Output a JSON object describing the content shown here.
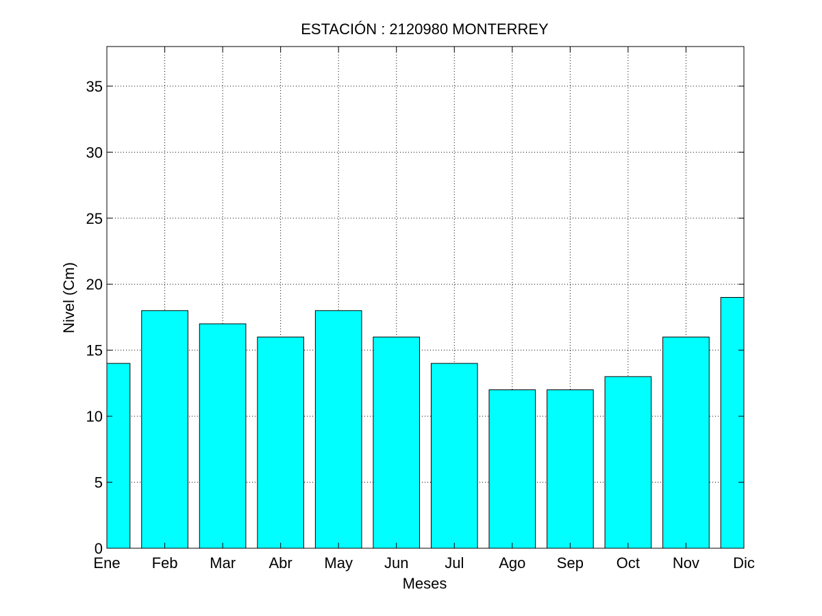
{
  "chart_data": {
    "type": "bar",
    "title": "ESTACIÓN :  2120980  MONTERREY",
    "xlabel": "Meses",
    "ylabel": "Nivel (Cm)",
    "categories": [
      "Ene",
      "Feb",
      "Mar",
      "Abr",
      "May",
      "Jun",
      "Jul",
      "Ago",
      "Sep",
      "Oct",
      "Nov",
      "Dic"
    ],
    "values": [
      14,
      18,
      17,
      16,
      18,
      16,
      14,
      12,
      12,
      13,
      16,
      19
    ],
    "ylim": [
      0,
      38
    ],
    "yticks": [
      0,
      5,
      10,
      15,
      20,
      25,
      30,
      35
    ],
    "grid": true,
    "bar_color": "#00ffff"
  }
}
